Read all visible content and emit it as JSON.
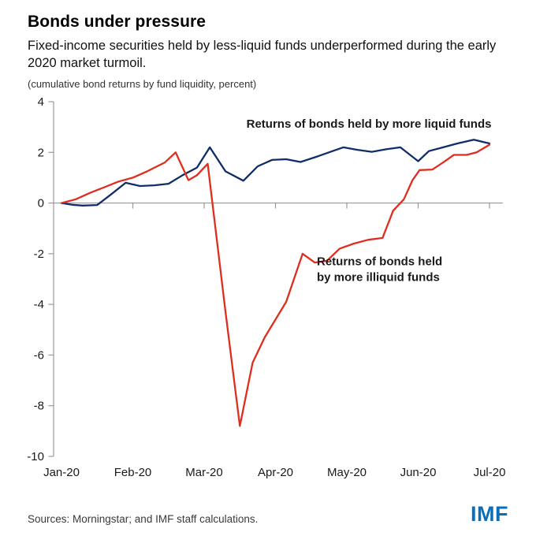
{
  "header": {
    "title": "Bonds under pressure",
    "subtitle": "Fixed-income securities held by less-liquid funds underperformed during the early 2020 market turmoil.",
    "note": "(cumulative bond returns by fund liquidity, percent)"
  },
  "footer": {
    "sources": "Sources: Morningstar; and IMF staff calculations.",
    "logo": "IMF"
  },
  "colors": {
    "liquid": "#102d69",
    "illiquid": "#dd2e1f",
    "axis": "#999999",
    "tick_label": "#1a1a1a",
    "logo_blue": "#0a6fb8"
  },
  "chart_data": {
    "type": "line",
    "title": "Bonds under pressure",
    "ylabel": "cumulative bond returns by fund liquidity, percent",
    "xlabel": "",
    "x_unit": "months since Jan-20",
    "xlim": [
      0,
      6
    ],
    "ylim": [
      -10,
      4
    ],
    "grid": false,
    "legend_position": "inline-annotations",
    "x_tick_labels": [
      "Jan-20",
      "Feb-20",
      "Mar-20",
      "Apr-20",
      "May-20",
      "Jun-20",
      "Jul-20"
    ],
    "y_ticks": [
      4,
      2,
      0,
      -2,
      -4,
      -6,
      -8,
      -10
    ],
    "series": [
      {
        "name": "Returns of bonds held by more liquid funds",
        "color_key": "liquid",
        "points": [
          [
            0,
            0
          ],
          [
            0.15,
            -0.07
          ],
          [
            0.3,
            -0.1
          ],
          [
            0.5,
            -0.08
          ],
          [
            0.7,
            0.35
          ],
          [
            0.9,
            0.8
          ],
          [
            1.1,
            0.67
          ],
          [
            1.3,
            0.7
          ],
          [
            1.5,
            0.76
          ],
          [
            1.7,
            1.1
          ],
          [
            1.9,
            1.4
          ],
          [
            2.08,
            2.2
          ],
          [
            2.3,
            1.25
          ],
          [
            2.55,
            0.88
          ],
          [
            2.75,
            1.45
          ],
          [
            2.95,
            1.7
          ],
          [
            3.15,
            1.73
          ],
          [
            3.35,
            1.62
          ],
          [
            3.6,
            1.85
          ],
          [
            3.8,
            2.05
          ],
          [
            3.95,
            2.2
          ],
          [
            4.15,
            2.1
          ],
          [
            4.35,
            2.02
          ],
          [
            4.55,
            2.12
          ],
          [
            4.75,
            2.2
          ],
          [
            5.0,
            1.65
          ],
          [
            5.15,
            2.05
          ],
          [
            5.35,
            2.2
          ],
          [
            5.55,
            2.35
          ],
          [
            5.78,
            2.5
          ],
          [
            6.0,
            2.35
          ]
        ]
      },
      {
        "name": "Returns of bonds held by more illiquid funds",
        "color_key": "illiquid",
        "points": [
          [
            0,
            0
          ],
          [
            0.2,
            0.15
          ],
          [
            0.4,
            0.4
          ],
          [
            0.6,
            0.62
          ],
          [
            0.8,
            0.85
          ],
          [
            1.0,
            1.0
          ],
          [
            1.2,
            1.25
          ],
          [
            1.45,
            1.6
          ],
          [
            1.6,
            2.0
          ],
          [
            1.78,
            0.9
          ],
          [
            1.9,
            1.1
          ],
          [
            2.05,
            1.55
          ],
          [
            2.3,
            -4.3
          ],
          [
            2.5,
            -8.8
          ],
          [
            2.68,
            -6.3
          ],
          [
            2.85,
            -5.3
          ],
          [
            3.0,
            -4.6
          ],
          [
            3.15,
            -3.9
          ],
          [
            3.38,
            -2.0
          ],
          [
            3.55,
            -2.35
          ],
          [
            3.72,
            -2.28
          ],
          [
            3.9,
            -1.8
          ],
          [
            4.1,
            -1.6
          ],
          [
            4.3,
            -1.45
          ],
          [
            4.5,
            -1.38
          ],
          [
            4.65,
            -0.3
          ],
          [
            4.8,
            0.15
          ],
          [
            4.92,
            0.9
          ],
          [
            5.02,
            1.3
          ],
          [
            5.2,
            1.32
          ],
          [
            5.35,
            1.6
          ],
          [
            5.5,
            1.9
          ],
          [
            5.68,
            1.9
          ],
          [
            5.82,
            2.0
          ],
          [
            6.0,
            2.3
          ]
        ]
      }
    ],
    "annotations": [
      {
        "lines": [
          "Returns of bonds held by more liquid funds"
        ],
        "color_key": "liquid",
        "anchor": "middle",
        "x": 4.31,
        "y": 2.97
      },
      {
        "lines": [
          "Returns of bonds held",
          "by more illiquid funds"
        ],
        "color_key": "illiquid",
        "anchor": "start",
        "x": 3.58,
        "y": -2.45
      }
    ]
  }
}
